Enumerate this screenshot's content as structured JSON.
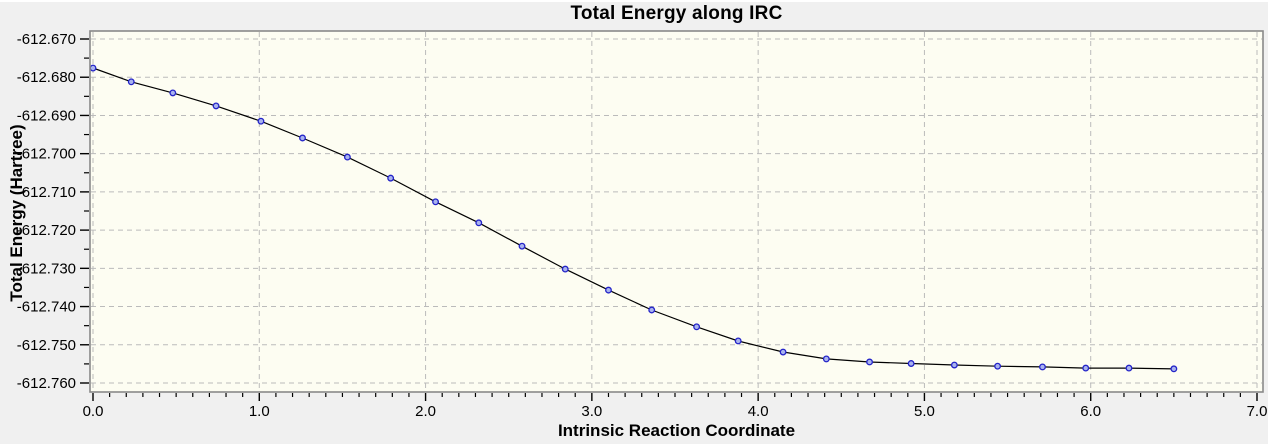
{
  "chart_data": {
    "type": "line",
    "title": "Total Energy along IRC",
    "xlabel": "Intrinsic Reaction Coordinate",
    "ylabel": "Total Energy (Hartree)",
    "xlim": [
      0.0,
      7.0
    ],
    "ylim": [
      -612.76,
      -612.67
    ],
    "x_major_tick_labels": [
      "0.0",
      "1.0",
      "2.0",
      "3.0",
      "4.0",
      "5.0",
      "6.0",
      "7.0"
    ],
    "x_minor_tick_step": 0.1,
    "y_major_tick_labels": [
      "-612.670",
      "-612.680",
      "-612.690",
      "-612.700",
      "-612.710",
      "-612.720",
      "-612.730",
      "-612.740",
      "-612.750",
      "-612.760"
    ],
    "y_minor_tick_step": 0.005,
    "grid": "dashed gridlines at every major tick, both axes",
    "legend_position": "none",
    "series": [
      {
        "name": "Total Energy",
        "marker": "circle",
        "x": [
          0.0,
          0.23,
          0.48,
          0.74,
          1.01,
          1.26,
          1.53,
          1.79,
          2.06,
          2.32,
          2.58,
          2.84,
          3.1,
          3.36,
          3.63,
          3.88,
          4.15,
          4.41,
          4.67,
          4.92,
          5.18,
          5.44,
          5.71,
          5.97,
          6.23,
          6.5
        ],
        "y": [
          -612.6776,
          -612.6812,
          -612.6841,
          -612.6875,
          -612.6915,
          -612.6959,
          -612.7009,
          -612.7064,
          -612.7126,
          -612.7181,
          -612.7242,
          -612.7302,
          -612.7357,
          -612.7409,
          -612.7453,
          -612.749,
          -612.7519,
          -612.7537,
          -612.7545,
          -612.7549,
          -612.7553,
          -612.7556,
          -612.7558,
          -612.7561,
          -612.7561,
          -612.7563
        ]
      }
    ],
    "colors": {
      "window_bg": "#f0f0f0",
      "plot_bg": "#fdfdf2",
      "plot_border": "#898989",
      "grid": "#bbbbbb",
      "line": "#000000",
      "marker_edge": "#2323c8",
      "marker_fill": "#a9b3ee",
      "text": "#000000"
    }
  }
}
